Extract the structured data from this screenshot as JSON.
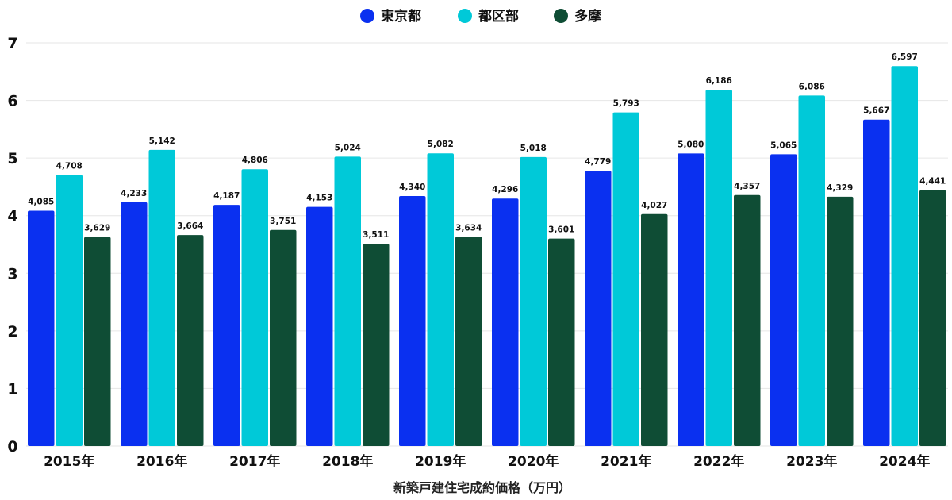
{
  "chart_data": {
    "type": "bar",
    "title": "",
    "xlabel": "新築戸建住宅成約価格（万円）",
    "ylabel": "",
    "ylim": [
      0,
      7
    ],
    "yticks": [
      "0",
      "1",
      "2",
      "3",
      "4",
      "5",
      "6",
      "7"
    ],
    "grid": true,
    "legend_position": "top-center",
    "categories": [
      "2015年",
      "2016年",
      "2017年",
      "2018年",
      "2019年",
      "2020年",
      "2021年",
      "2022年",
      "2023年",
      "2024年"
    ],
    "value_unit_divisor": 1000,
    "series": [
      {
        "name": "東京都",
        "color": "#0a30f0",
        "values": [
          4085,
          4233,
          4187,
          4153,
          4340,
          4296,
          4779,
          5080,
          5065,
          5667
        ],
        "labels": [
          "4,085",
          "4,233",
          "4,187",
          "4,153",
          "4,340",
          "4,296",
          "4,779",
          "5,080",
          "5,065",
          "5,667"
        ]
      },
      {
        "name": "都区部",
        "color": "#00c9d8",
        "values": [
          4708,
          5142,
          4806,
          5024,
          5082,
          5018,
          5793,
          6186,
          6086,
          6597
        ],
        "labels": [
          "4,708",
          "5,142",
          "4,806",
          "5,024",
          "5,082",
          "5,018",
          "5,793",
          "6,186",
          "6,086",
          "6,597"
        ]
      },
      {
        "name": "多摩",
        "color": "#0f4d35",
        "values": [
          3629,
          3664,
          3751,
          3511,
          3634,
          3601,
          4027,
          4357,
          4329,
          4441
        ],
        "labels": [
          "3,629",
          "3,664",
          "3,751",
          "3,511",
          "3,634",
          "3,601",
          "4,027",
          "4,357",
          "4,329",
          "4,441"
        ]
      }
    ]
  }
}
